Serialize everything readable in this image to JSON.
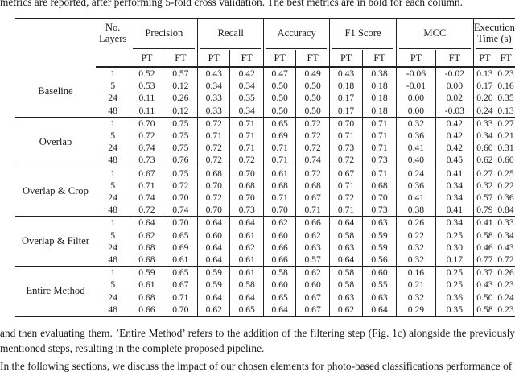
{
  "colors": {
    "ink": "#1a1a1a",
    "rule": "#222222",
    "background": "#ffffff"
  },
  "page": {
    "top_text_fragment": "metrics are reported, after performing 5-fold cross validation. The best metrics are in bold for each column.",
    "caption_text": "and then evaluating them. ’Entire Method’ refers to the addition of the filtering step (Fig. 1c) alongside the previously mentioned steps, resulting in the complete proposed pipeline.",
    "clipped_bottom_text_fragment": "In the following sections, we discuss the impact of our chosen elements for photo-based classifications performance of our proposed estimation. Th"
  },
  "table": {
    "layers_header": "No. Layers",
    "groups_header": [
      "Precision",
      "Recall",
      "Accuracy",
      "F1 Score",
      "MCC",
      "Execution Time (s)"
    ],
    "subheader": [
      "PT",
      "FT"
    ],
    "row_groups": [
      {
        "label": "Baseline",
        "rows": [
          {
            "layers": "1",
            "values": [
              "0.52",
              "0.57",
              "0.43",
              "0.42",
              "0.47",
              "0.49",
              "0.43",
              "0.38",
              "-0.06",
              "-0.02",
              "0.13",
              "0.23"
            ],
            "bold": [
              10
            ]
          },
          {
            "layers": "5",
            "values": [
              "0.53",
              "0.12",
              "0.34",
              "0.34",
              "0.50",
              "0.50",
              "0.18",
              "0.18",
              "-0.01",
              "0.00",
              "0.17",
              "0.16"
            ],
            "bold": []
          },
          {
            "layers": "24",
            "values": [
              "0.11",
              "0.26",
              "0.33",
              "0.35",
              "0.50",
              "0.50",
              "0.17",
              "0.18",
              "0.00",
              "0.02",
              "0.20",
              "0.35"
            ],
            "bold": []
          },
          {
            "layers": "48",
            "values": [
              "0.11",
              "0.12",
              "0.33",
              "0.34",
              "0.50",
              "0.50",
              "0.17",
              "0.18",
              "0.00",
              "-0.03",
              "0.24",
              "0.13"
            ],
            "bold": [
              11
            ]
          }
        ]
      },
      {
        "label": "Overlap",
        "rows": [
          {
            "layers": "1",
            "values": [
              "0.70",
              "0.75",
              "0.72",
              "0.71",
              "0.65",
              "0.72",
              "0.70",
              "0.71",
              "0.32",
              "0.42",
              "0.33",
              "0.27"
            ],
            "bold": [
              2
            ]
          },
          {
            "layers": "5",
            "values": [
              "0.72",
              "0.75",
              "0.71",
              "0.71",
              "0.69",
              "0.72",
              "0.71",
              "0.71",
              "0.36",
              "0.42",
              "0.34",
              "0.21"
            ],
            "bold": []
          },
          {
            "layers": "24",
            "values": [
              "0.74",
              "0.75",
              "0.72",
              "0.71",
              "0.71",
              "0.72",
              "0.73",
              "0.71",
              "0.41",
              "0.42",
              "0.60",
              "0.31"
            ],
            "bold": [
              0,
              2,
              4,
              6,
              8
            ]
          },
          {
            "layers": "48",
            "values": [
              "0.73",
              "0.76",
              "0.72",
              "0.72",
              "0.71",
              "0.74",
              "0.72",
              "0.73",
              "0.40",
              "0.45",
              "0.62",
              "0.60"
            ],
            "bold": [
              1,
              2,
              4,
              5,
              7,
              9
            ]
          }
        ]
      },
      {
        "label": "Overlap & Crop",
        "rows": [
          {
            "layers": "1",
            "values": [
              "0.67",
              "0.75",
              "0.68",
              "0.70",
              "0.61",
              "0.72",
              "0.67",
              "0.71",
              "0.24",
              "0.41",
              "0.27",
              "0.25"
            ],
            "bold": []
          },
          {
            "layers": "5",
            "values": [
              "0.71",
              "0.72",
              "0.70",
              "0.68",
              "0.68",
              "0.68",
              "0.71",
              "0.68",
              "0.36",
              "0.34",
              "0.32",
              "0.22"
            ],
            "bold": []
          },
          {
            "layers": "24",
            "values": [
              "0.74",
              "0.70",
              "0.72",
              "0.70",
              "0.71",
              "0.67",
              "0.72",
              "0.70",
              "0.41",
              "0.34",
              "0.57",
              "0.36"
            ],
            "bold": [
              0,
              2,
              4,
              8
            ]
          },
          {
            "layers": "48",
            "values": [
              "0.72",
              "0.74",
              "0.70",
              "0.73",
              "0.70",
              "0.71",
              "0.71",
              "0.73",
              "0.38",
              "0.41",
              "0.79",
              "0.84"
            ],
            "bold": [
              3
            ]
          }
        ]
      },
      {
        "label": "Overlap & Filter",
        "rows": [
          {
            "layers": "1",
            "values": [
              "0.64",
              "0.70",
              "0.64",
              "0.64",
              "0.62",
              "0.66",
              "0.64",
              "0.63",
              "0.26",
              "0.34",
              "0.41",
              "0.33"
            ],
            "bold": []
          },
          {
            "layers": "5",
            "values": [
              "0.62",
              "0.65",
              "0.60",
              "0.61",
              "0.60",
              "0.62",
              "0.58",
              "0.59",
              "0.22",
              "0.25",
              "0.58",
              "0.34"
            ],
            "bold": []
          },
          {
            "layers": "24",
            "values": [
              "0.68",
              "0.69",
              "0.64",
              "0.62",
              "0.66",
              "0.63",
              "0.63",
              "0.59",
              "0.32",
              "0.30",
              "0.46",
              "0.43"
            ],
            "bold": []
          },
          {
            "layers": "48",
            "values": [
              "0.68",
              "0.61",
              "0.64",
              "0.61",
              "0.66",
              "0.57",
              "0.64",
              "0.56",
              "0.32",
              "0.17",
              "0.77",
              "0.72"
            ],
            "bold": []
          }
        ]
      },
      {
        "label": "Entire Method",
        "rows": [
          {
            "layers": "1",
            "values": [
              "0.59",
              "0.65",
              "0.59",
              "0.61",
              "0.58",
              "0.62",
              "0.58",
              "0.60",
              "0.16",
              "0.25",
              "0.37",
              "0.26"
            ],
            "bold": []
          },
          {
            "layers": "5",
            "values": [
              "0.61",
              "0.67",
              "0.59",
              "0.58",
              "0.60",
              "0.60",
              "0.58",
              "0.55",
              "0.21",
              "0.25",
              "0.43",
              "0.23"
            ],
            "bold": []
          },
          {
            "layers": "24",
            "values": [
              "0.68",
              "0.71",
              "0.64",
              "0.64",
              "0.65",
              "0.67",
              "0.63",
              "0.63",
              "0.32",
              "0.36",
              "0.50",
              "0.24"
            ],
            "bold": []
          },
          {
            "layers": "48",
            "values": [
              "0.66",
              "0.70",
              "0.62",
              "0.65",
              "0.64",
              "0.67",
              "0.62",
              "0.64",
              "0.29",
              "0.35",
              "0.58",
              "0.23"
            ],
            "bold": []
          }
        ]
      }
    ]
  }
}
